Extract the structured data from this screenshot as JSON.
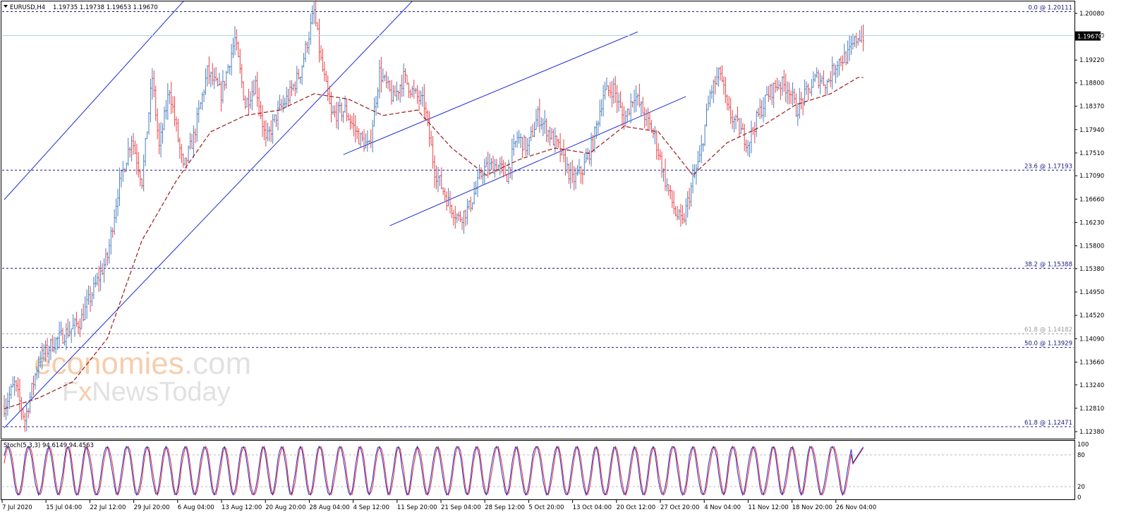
{
  "header": {
    "symbol": "EURUSD,H4",
    "ohlc": "1.19735 1.19738 1.19653 1.19670"
  },
  "watermark": {
    "line1_a": "economies",
    "line1_b": ".com",
    "line2_a": "F",
    "line2_b": "x",
    "line2_c": "NewsToday"
  },
  "colors": {
    "bull": "#4a7fbf",
    "bear": "#e8434a",
    "ma": "#9b1b1b",
    "trend": "#1f2bd4",
    "fib": "#1a1a80",
    "fib_light": "#9a9a9a",
    "current_price_line": "#a8d4e0",
    "stoch_main": "#1f2bd4",
    "stoch_signal": "#e0282f"
  },
  "chart_data": {
    "type": "candlestick",
    "instrument": "EURUSD",
    "timeframe": "H4",
    "ohlc_last": {
      "open": 1.19735,
      "high": 1.19738,
      "low": 1.19653,
      "close": 1.1967
    },
    "current_price": "1.19670",
    "price_axis": {
      "ticks": [
        "1.20080",
        "1.19670",
        "1.19220",
        "1.18800",
        "1.18370",
        "1.17940",
        "1.17510",
        "1.17090",
        "1.16660",
        "1.16230",
        "1.15800",
        "1.15380",
        "1.14950",
        "1.14520",
        "1.14090",
        "1.13660",
        "1.13240",
        "1.12810",
        "1.12380"
      ],
      "range": [
        1.1225,
        1.203
      ]
    },
    "time_axis": {
      "labels": [
        "7 Jul 2020",
        "15 Jul 04:00",
        "22 Jul 12:00",
        "29 Jul 20:00",
        "6 Aug 04:00",
        "13 Aug 12:00",
        "20 Aug 20:00",
        "28 Aug 04:00",
        "4 Sep 12:00",
        "11 Sep 20:00",
        "21 Sep 04:00",
        "28 Sep 12:00",
        "5 Oct 20:00",
        "13 Oct 04:00",
        "20 Oct 12:00",
        "27 Oct 20:00",
        "4 Nov 04:00",
        "11 Nov 12:00",
        "18 Nov 20:00",
        "26 Nov 04:00"
      ]
    },
    "fibonacci_levels": [
      {
        "label": "0.0 @ 1.20111",
        "price": 1.20111,
        "style": "dark"
      },
      {
        "label": "23.6 @ 1.17193",
        "price": 1.17193,
        "style": "dark"
      },
      {
        "label": "38.2 @ 1.15388",
        "price": 1.15388,
        "style": "dark"
      },
      {
        "label": "61.8 @ 1.14182",
        "price": 1.14182,
        "style": "light"
      },
      {
        "label": "50.0 @ 1.13929",
        "price": 1.13929,
        "style": "dark"
      },
      {
        "label": "61.8 @ 1.12471",
        "price": 1.12471,
        "style": "dark"
      }
    ],
    "price_path_keypoints": [
      [
        0,
        1.1285
      ],
      [
        6,
        1.1325
      ],
      [
        12,
        1.126
      ],
      [
        20,
        1.137
      ],
      [
        28,
        1.14
      ],
      [
        36,
        1.142
      ],
      [
        44,
        1.144
      ],
      [
        52,
        1.15
      ],
      [
        60,
        1.156
      ],
      [
        66,
        1.168
      ],
      [
        74,
        1.178
      ],
      [
        80,
        1.17
      ],
      [
        86,
        1.189
      ],
      [
        90,
        1.176
      ],
      [
        96,
        1.187
      ],
      [
        104,
        1.172
      ],
      [
        110,
        1.178
      ],
      [
        118,
        1.19
      ],
      [
        126,
        1.186
      ],
      [
        134,
        1.196
      ],
      [
        140,
        1.184
      ],
      [
        146,
        1.188
      ],
      [
        152,
        1.177
      ],
      [
        158,
        1.182
      ],
      [
        166,
        1.186
      ],
      [
        172,
        1.19
      ],
      [
        180,
        1.2011
      ],
      [
        184,
        1.192
      ],
      [
        190,
        1.182
      ],
      [
        198,
        1.183
      ],
      [
        206,
        1.178
      ],
      [
        212,
        1.176
      ],
      [
        218,
        1.19
      ],
      [
        226,
        1.185
      ],
      [
        232,
        1.189
      ],
      [
        238,
        1.186
      ],
      [
        244,
        1.184
      ],
      [
        250,
        1.172
      ],
      [
        258,
        1.166
      ],
      [
        264,
        1.163
      ],
      [
        270,
        1.165
      ],
      [
        278,
        1.172
      ],
      [
        286,
        1.173
      ],
      [
        292,
        1.171
      ],
      [
        298,
        1.178
      ],
      [
        304,
        1.176
      ],
      [
        310,
        1.182
      ],
      [
        316,
        1.179
      ],
      [
        322,
        1.176
      ],
      [
        330,
        1.17
      ],
      [
        336,
        1.172
      ],
      [
        342,
        1.177
      ],
      [
        348,
        1.186
      ],
      [
        354,
        1.187
      ],
      [
        360,
        1.181
      ],
      [
        366,
        1.186
      ],
      [
        372,
        1.182
      ],
      [
        378,
        1.178
      ],
      [
        384,
        1.17
      ],
      [
        390,
        1.164
      ],
      [
        394,
        1.162
      ],
      [
        400,
        1.17
      ],
      [
        404,
        1.174
      ],
      [
        410,
        1.186
      ],
      [
        416,
        1.19
      ],
      [
        420,
        1.183
      ],
      [
        426,
        1.18
      ],
      [
        432,
        1.177
      ],
      [
        438,
        1.182
      ],
      [
        444,
        1.186
      ],
      [
        450,
        1.188
      ],
      [
        456,
        1.187
      ],
      [
        460,
        1.183
      ],
      [
        466,
        1.186
      ],
      [
        472,
        1.189
      ],
      [
        478,
        1.188
      ],
      [
        484,
        1.192
      ],
      [
        490,
        1.193
      ],
      [
        496,
        1.1967
      ]
    ],
    "moving_average_keypoints": [
      [
        0,
        1.128
      ],
      [
        20,
        1.13
      ],
      [
        40,
        1.133
      ],
      [
        60,
        1.141
      ],
      [
        80,
        1.159
      ],
      [
        100,
        1.17
      ],
      [
        120,
        1.179
      ],
      [
        140,
        1.182
      ],
      [
        160,
        1.183
      ],
      [
        180,
        1.186
      ],
      [
        200,
        1.185
      ],
      [
        220,
        1.182
      ],
      [
        240,
        1.183
      ],
      [
        260,
        1.176
      ],
      [
        280,
        1.171
      ],
      [
        300,
        1.174
      ],
      [
        320,
        1.176
      ],
      [
        340,
        1.175
      ],
      [
        360,
        1.18
      ],
      [
        380,
        1.179
      ],
      [
        400,
        1.171
      ],
      [
        420,
        1.177
      ],
      [
        440,
        1.18
      ],
      [
        460,
        1.184
      ],
      [
        480,
        1.186
      ],
      [
        496,
        1.189
      ]
    ],
    "trend_lines": [
      {
        "name": "channel-upper-outer",
        "from": [
          0,
          1.1665
        ],
        "to": [
          124,
          1.21
        ]
      },
      {
        "name": "channel-lower-outer",
        "from": [
          0,
          1.1245
        ],
        "to": [
          258,
          1.21
        ]
      },
      {
        "name": "rising-channel-upper",
        "from": [
          197,
          1.1748
        ],
        "to": [
          368,
          1.1974
        ]
      },
      {
        "name": "rising-channel-lower",
        "from": [
          224,
          1.1617
        ],
        "to": [
          396,
          1.1855
        ]
      }
    ],
    "stochastic": {
      "label": "Stoch(5,3,3) 94.6149 94.4563",
      "main": 94.6149,
      "signal": 94.4563,
      "axis_ticks": [
        "100",
        "80",
        "20",
        "0"
      ],
      "levels": [
        80,
        20
      ]
    }
  }
}
